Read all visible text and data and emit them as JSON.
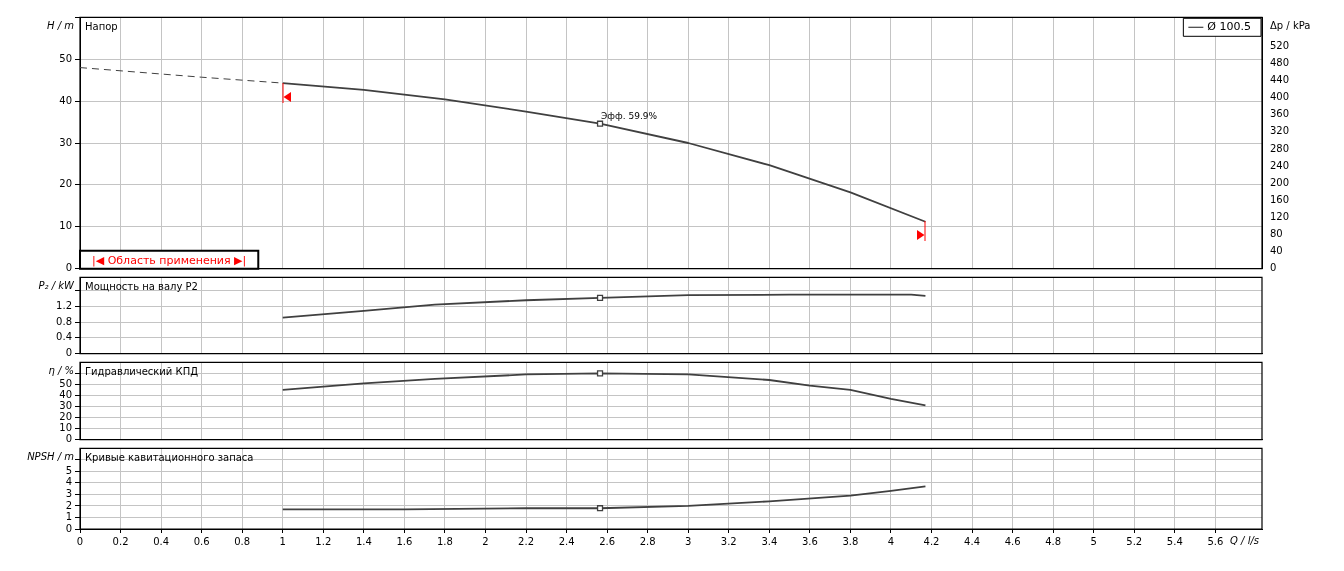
{
  "chart_data": [
    {
      "type": "line",
      "title": "Напор",
      "ylabel": "H / m",
      "y2label": "Δp / kPa",
      "series": [
        {
          "x": [
            0,
            0.6,
            1
          ],
          "values": [
            48.0,
            45.7,
            44.3
          ],
          "color": "#404040",
          "line_style": "dashed"
        },
        {
          "name": "Ø 100.5",
          "x": [
            1.0,
            1.4,
            1.8,
            2.2,
            2.565,
            3.0,
            3.4,
            3.8,
            4.17
          ],
          "values": [
            44.3,
            42.7,
            40.4,
            37.5,
            34.6,
            30.0,
            24.7,
            18.2,
            11.2
          ],
          "color": "#404040"
        },
        {
          "type": "scatter",
          "x": [
            2.565
          ],
          "values": [
            34.6
          ],
          "color": "#404040",
          "marker": "square"
        }
      ],
      "xlim": [
        0,
        5.83
      ],
      "xticks": [
        0,
        0.2,
        0.4,
        0.6,
        0.8,
        1,
        1.2,
        1.4,
        1.6,
        1.8,
        2,
        2.2,
        2.4,
        2.6,
        2.8,
        3,
        3.2,
        3.4,
        3.6,
        3.8,
        4,
        4.2,
        4.4,
        4.6,
        4.8,
        5,
        5.2,
        5.4,
        5.6
      ],
      "ylim": [
        0,
        60
      ],
      "yticks": [
        0,
        10,
        20,
        30,
        40,
        50,
        {
          "value": 60,
          "label": null
        }
      ],
      "y2lim": [
        0,
        588
      ],
      "y2ticks": [
        0,
        40,
        80,
        120,
        160,
        200,
        240,
        280,
        320,
        360,
        400,
        440,
        480,
        520
      ],
      "grid": true,
      "legend": "top right",
      "tick_labels": "y",
      "annotations": [
        "|◀ Область применения ▶|",
        {
          "text": "Эфф. 59.9%",
          "x": 2.565,
          "y": 34.6
        }
      ]
    },
    {
      "type": "line",
      "title": "Мощность на валу P2",
      "ylabel": "P₂ / kW",
      "series": [
        {
          "x": [
            1.0,
            1.4,
            1.75,
            2.2,
            2.565,
            3.0,
            3.5,
            4.1,
            4.17
          ],
          "values": [
            0.91,
            1.08,
            1.24,
            1.35,
            1.41,
            1.48,
            1.49,
            1.49,
            1.46
          ],
          "color": "#404040"
        },
        {
          "type": "scatter",
          "x": [
            2.565
          ],
          "values": [
            1.41
          ],
          "color": "#404040",
          "marker": "square"
        }
      ],
      "xlim": [
        0,
        5.83
      ],
      "xticks": [
        0,
        0.2,
        0.4,
        0.6,
        0.8,
        1,
        1.2,
        1.4,
        1.6,
        1.8,
        2,
        2.2,
        2.4,
        2.6,
        2.8,
        3,
        3.2,
        3.4,
        3.6,
        3.8,
        4,
        4.2,
        4.4,
        4.6,
        4.8,
        5,
        5.2,
        5.4,
        5.6
      ],
      "ylim": [
        0,
        1.93
      ],
      "yticks": [
        0,
        0.4,
        0.8,
        1.2,
        {
          "value": 1.6,
          "label": null
        }
      ],
      "grid": true,
      "tick_labels": "y"
    },
    {
      "type": "line",
      "title": "Гидравлический КПД",
      "ylabel": "η / %",
      "series": [
        {
          "x": [
            1.0,
            1.4,
            1.75,
            2.2,
            2.565,
            3.0,
            3.4,
            3.6,
            3.8,
            4.0,
            4.17
          ],
          "values": [
            45,
            51,
            55,
            59,
            60,
            59,
            54,
            49,
            45,
            37,
            31
          ],
          "color": "#404040"
        },
        {
          "type": "scatter",
          "x": [
            2.565
          ],
          "values": [
            60
          ],
          "color": "#404040",
          "marker": "square"
        }
      ],
      "xlim": [
        0,
        5.83
      ],
      "xticks": [
        0,
        0.2,
        0.4,
        0.6,
        0.8,
        1,
        1.2,
        1.4,
        1.6,
        1.8,
        2,
        2.2,
        2.4,
        2.6,
        2.8,
        3,
        3.2,
        3.4,
        3.6,
        3.8,
        4,
        4.2,
        4.4,
        4.6,
        4.8,
        5,
        5.2,
        5.4,
        5.6
      ],
      "ylim": [
        0,
        70
      ],
      "yticks": [
        0,
        10,
        20,
        30,
        40,
        50,
        {
          "value": 60,
          "label": null
        }
      ],
      "grid": true,
      "tick_labels": "y"
    },
    {
      "type": "line",
      "title": "Кривые кавитационного запаса",
      "ylabel": "NPSH / m",
      "xlabel": "Q / l/s",
      "series": [
        {
          "x": [
            1.0,
            1.6,
            2.2,
            2.565,
            3.0,
            3.4,
            3.8,
            4.0,
            4.17
          ],
          "values": [
            1.7,
            1.7,
            1.8,
            1.8,
            2.0,
            2.4,
            2.9,
            3.3,
            3.7
          ],
          "color": "#404040"
        },
        {
          "type": "scatter",
          "x": [
            2.565
          ],
          "values": [
            1.8
          ],
          "color": "#404040",
          "marker": "square"
        }
      ],
      "xlim": [
        0,
        5.83
      ],
      "xticks": [
        0,
        0.2,
        0.4,
        0.6,
        0.8,
        1,
        1.2,
        1.4,
        1.6,
        1.8,
        2,
        2.2,
        2.4,
        2.6,
        2.8,
        3,
        3.2,
        3.4,
        3.6,
        3.8,
        4,
        4.2,
        4.4,
        4.6,
        4.8,
        5,
        5.2,
        5.4,
        5.6
      ],
      "ylim": [
        0,
        7
      ],
      "yticks": [
        0,
        1,
        2,
        3,
        4,
        5,
        {
          "value": 6,
          "label": null
        }
      ],
      "grid": true
    }
  ]
}
